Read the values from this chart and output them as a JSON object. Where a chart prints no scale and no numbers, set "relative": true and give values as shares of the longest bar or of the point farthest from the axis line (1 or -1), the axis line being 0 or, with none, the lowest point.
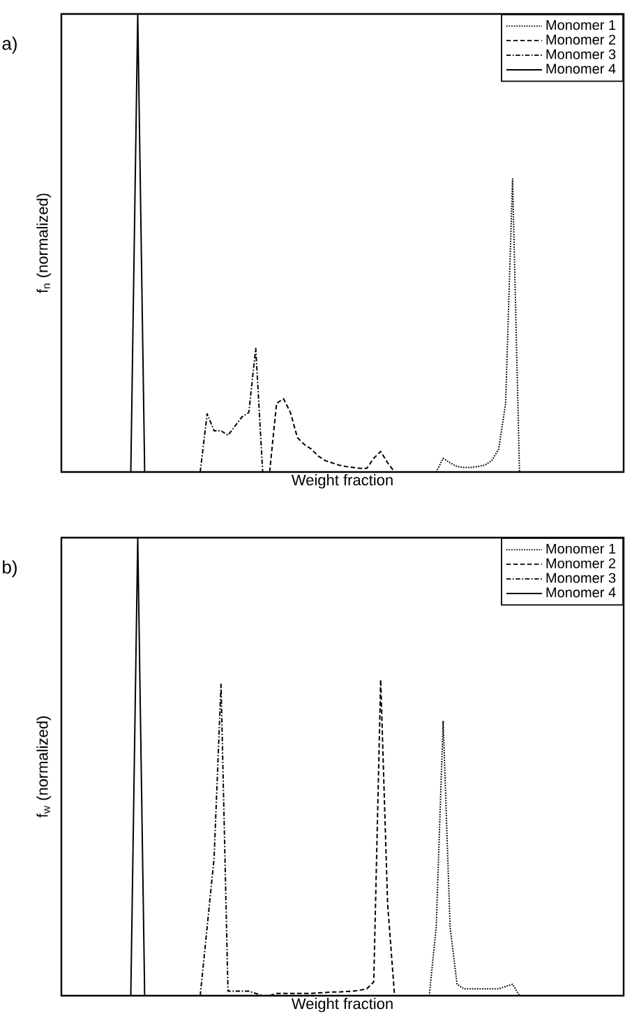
{
  "chart_data": [
    {
      "type": "line",
      "title": "a)",
      "xlabel": "Weight fraction",
      "ylabel": "f$_{n}$ (normalized)",
      "relative": true,
      "tick_labels": false,
      "legend": "top right",
      "categories": [
        null,
        null,
        null,
        null,
        null,
        null,
        null,
        null,
        null,
        null,
        null,
        null,
        null,
        null,
        null,
        null,
        null,
        null,
        null,
        null,
        null,
        null,
        null,
        null,
        null,
        null,
        null,
        null,
        null,
        null,
        null,
        null,
        null,
        null,
        null,
        null,
        null,
        null,
        null,
        null,
        null,
        null,
        null,
        null,
        null,
        null,
        null,
        null,
        null,
        null,
        null,
        null,
        null,
        null,
        null,
        null,
        null,
        null,
        null,
        null,
        null,
        null,
        null,
        null,
        null,
        null,
        null,
        null,
        null,
        null,
        null,
        null,
        null,
        null,
        null,
        null,
        null,
        null,
        null,
        null,
        null,
        null
      ],
      "series": [
        {
          "name": "Monomer 1",
          "color": "#000000",
          "line_style": "dotted",
          "values": [
            null,
            null,
            null,
            null,
            null,
            null,
            null,
            null,
            null,
            null,
            null,
            null,
            null,
            null,
            null,
            null,
            null,
            null,
            null,
            null,
            null,
            null,
            null,
            null,
            null,
            null,
            null,
            null,
            null,
            null,
            null,
            null,
            null,
            null,
            null,
            null,
            null,
            null,
            null,
            null,
            null,
            null,
            null,
            null,
            null,
            null,
            null,
            null,
            null,
            null,
            null,
            null,
            null,
            null,
            0,
            0.03,
            0.02,
            0.012,
            0.01,
            0.01,
            0.012,
            0.015,
            0.025,
            0.05,
            0.15,
            0.64,
            0,
            null,
            null,
            null,
            null,
            null,
            null,
            null,
            null,
            null,
            null,
            null,
            null,
            null,
            null,
            null
          ]
        },
        {
          "name": "Monomer 2",
          "color": "#000000",
          "line_style": "dashed",
          "values": [
            null,
            null,
            null,
            null,
            null,
            null,
            null,
            null,
            null,
            null,
            null,
            null,
            null,
            null,
            null,
            null,
            null,
            null,
            null,
            null,
            null,
            null,
            null,
            null,
            null,
            null,
            null,
            null,
            null,
            null,
            0,
            0.15,
            0.16,
            0.13,
            0.075,
            0.06,
            0.05,
            0.035,
            0.025,
            0.02,
            0.015,
            0.012,
            0.01,
            0.008,
            0.008,
            0.03,
            0.045,
            0.02,
            0,
            null,
            null,
            null,
            null,
            null,
            null,
            null,
            null,
            null,
            null,
            null,
            null,
            null,
            null,
            null,
            null,
            null,
            null,
            null,
            null,
            null,
            null,
            null,
            null,
            null,
            null,
            null,
            null,
            null,
            null,
            null,
            null,
            null
          ]
        },
        {
          "name": "Monomer 3",
          "color": "#000000",
          "line_style": "dashdot",
          "values": [
            null,
            null,
            null,
            null,
            null,
            null,
            null,
            null,
            null,
            null,
            null,
            null,
            null,
            null,
            null,
            null,
            null,
            null,
            null,
            null,
            0,
            0.127,
            0.09,
            0.09,
            0.08,
            0.1,
            0.12,
            0.13,
            0.27,
            0,
            null,
            null,
            null,
            null,
            null,
            null,
            null,
            null,
            null,
            null,
            null,
            null,
            null,
            null,
            null,
            null,
            null,
            null,
            null,
            null,
            null,
            null,
            null,
            null,
            null,
            null,
            null,
            null,
            null,
            null,
            null,
            null,
            null,
            null,
            null,
            null,
            null,
            null,
            null,
            null,
            null,
            null,
            null,
            null,
            null,
            null,
            null,
            null,
            null,
            null,
            null,
            null
          ]
        },
        {
          "name": "Monomer 4",
          "color": "#000000",
          "line_style": "solid",
          "values": [
            null,
            null,
            null,
            null,
            null,
            null,
            null,
            null,
            null,
            null,
            0,
            1,
            0,
            null,
            null,
            null,
            null,
            null,
            null,
            null,
            null,
            null,
            null,
            null,
            null,
            null,
            null,
            null,
            null,
            null,
            null,
            null,
            null,
            null,
            null,
            null,
            null,
            null,
            null,
            null,
            null,
            null,
            null,
            null,
            null,
            null,
            null,
            null,
            null,
            null,
            null,
            null,
            null,
            null,
            null,
            null,
            null,
            null,
            null,
            null,
            null,
            null,
            null,
            null,
            null,
            null,
            null,
            null,
            null,
            null,
            null,
            null,
            null,
            null,
            null,
            null,
            null,
            null,
            null,
            null,
            null,
            null
          ]
        }
      ]
    },
    {
      "type": "line",
      "title": "b)",
      "xlabel": "Weight fraction",
      "ylabel": "f$_{w}$ (normalized)",
      "relative": true,
      "tick_labels": false,
      "legend": "top right",
      "categories": [
        null,
        null,
        null,
        null,
        null,
        null,
        null,
        null,
        null,
        null,
        null,
        null,
        null,
        null,
        null,
        null,
        null,
        null,
        null,
        null,
        null,
        null,
        null,
        null,
        null,
        null,
        null,
        null,
        null,
        null,
        null,
        null,
        null,
        null,
        null,
        null,
        null,
        null,
        null,
        null,
        null,
        null,
        null,
        null,
        null,
        null,
        null,
        null,
        null,
        null,
        null,
        null,
        null,
        null,
        null,
        null,
        null,
        null,
        null,
        null,
        null,
        null,
        null,
        null,
        null,
        null,
        null,
        null,
        null,
        null,
        null,
        null,
        null,
        null,
        null,
        null,
        null,
        null,
        null,
        null,
        null,
        null
      ],
      "series": [
        {
          "name": "Monomer 1",
          "color": "#000000",
          "line_style": "dotted",
          "values": [
            null,
            null,
            null,
            null,
            null,
            null,
            null,
            null,
            null,
            null,
            null,
            null,
            null,
            null,
            null,
            null,
            null,
            null,
            null,
            null,
            null,
            null,
            null,
            null,
            null,
            null,
            null,
            null,
            null,
            null,
            null,
            null,
            null,
            null,
            null,
            null,
            null,
            null,
            null,
            null,
            null,
            null,
            null,
            null,
            null,
            null,
            null,
            null,
            null,
            null,
            null,
            null,
            null,
            0,
            0.15,
            0.6,
            0.15,
            0.025,
            0.015,
            0.015,
            0.015,
            0.015,
            0.015,
            0.015,
            0.02,
            0.025,
            0,
            null,
            null,
            null,
            null,
            null,
            null,
            null,
            null,
            null,
            null,
            null,
            null,
            null,
            null,
            null
          ]
        },
        {
          "name": "Monomer 2",
          "color": "#000000",
          "line_style": "dashed",
          "values": [
            null,
            null,
            null,
            null,
            null,
            null,
            null,
            null,
            null,
            null,
            null,
            null,
            null,
            null,
            null,
            null,
            null,
            null,
            null,
            null,
            null,
            null,
            null,
            null,
            null,
            null,
            null,
            null,
            null,
            null,
            0,
            0.005,
            0.005,
            0.005,
            0.005,
            0.005,
            0.005,
            0.006,
            0.007,
            0.008,
            0.008,
            0.009,
            0.01,
            0.012,
            0.015,
            0.03,
            0.69,
            0.2,
            0,
            null,
            null,
            null,
            null,
            null,
            null,
            null,
            null,
            null,
            null,
            null,
            null,
            null,
            null,
            null,
            null,
            null,
            null,
            null,
            null,
            null,
            null,
            null,
            null,
            null,
            null,
            null,
            null,
            null,
            null,
            null,
            null,
            null
          ]
        },
        {
          "name": "Monomer 3",
          "color": "#000000",
          "line_style": "dashdot",
          "values": [
            null,
            null,
            null,
            null,
            null,
            null,
            null,
            null,
            null,
            null,
            null,
            null,
            null,
            null,
            null,
            null,
            null,
            null,
            null,
            null,
            0,
            0.15,
            0.3,
            0.68,
            0.01,
            0.01,
            0.01,
            0.01,
            0.005,
            0,
            null,
            null,
            null,
            null,
            null,
            null,
            null,
            null,
            null,
            null,
            null,
            null,
            null,
            null,
            null,
            null,
            null,
            null,
            null,
            null,
            null,
            null,
            null,
            null,
            null,
            null,
            null,
            null,
            null,
            null,
            null,
            null,
            null,
            null,
            null,
            null,
            null,
            null,
            null,
            null,
            null,
            null,
            null,
            null,
            null,
            null,
            null,
            null,
            null,
            null,
            null,
            null
          ]
        },
        {
          "name": "Monomer 4",
          "color": "#000000",
          "line_style": "solid",
          "values": [
            null,
            null,
            null,
            null,
            null,
            null,
            null,
            null,
            null,
            null,
            0,
            1,
            0,
            null,
            null,
            null,
            null,
            null,
            null,
            null,
            null,
            null,
            null,
            null,
            null,
            null,
            null,
            null,
            null,
            null,
            null,
            null,
            null,
            null,
            null,
            null,
            null,
            null,
            null,
            null,
            null,
            null,
            null,
            null,
            null,
            null,
            null,
            null,
            null,
            null,
            null,
            null,
            null,
            null,
            null,
            null,
            null,
            null,
            null,
            null,
            null,
            null,
            null,
            null,
            null,
            null,
            null,
            null,
            null,
            null,
            null,
            null,
            null,
            null,
            null,
            null,
            null,
            null,
            null,
            null,
            null,
            null
          ]
        }
      ]
    }
  ]
}
